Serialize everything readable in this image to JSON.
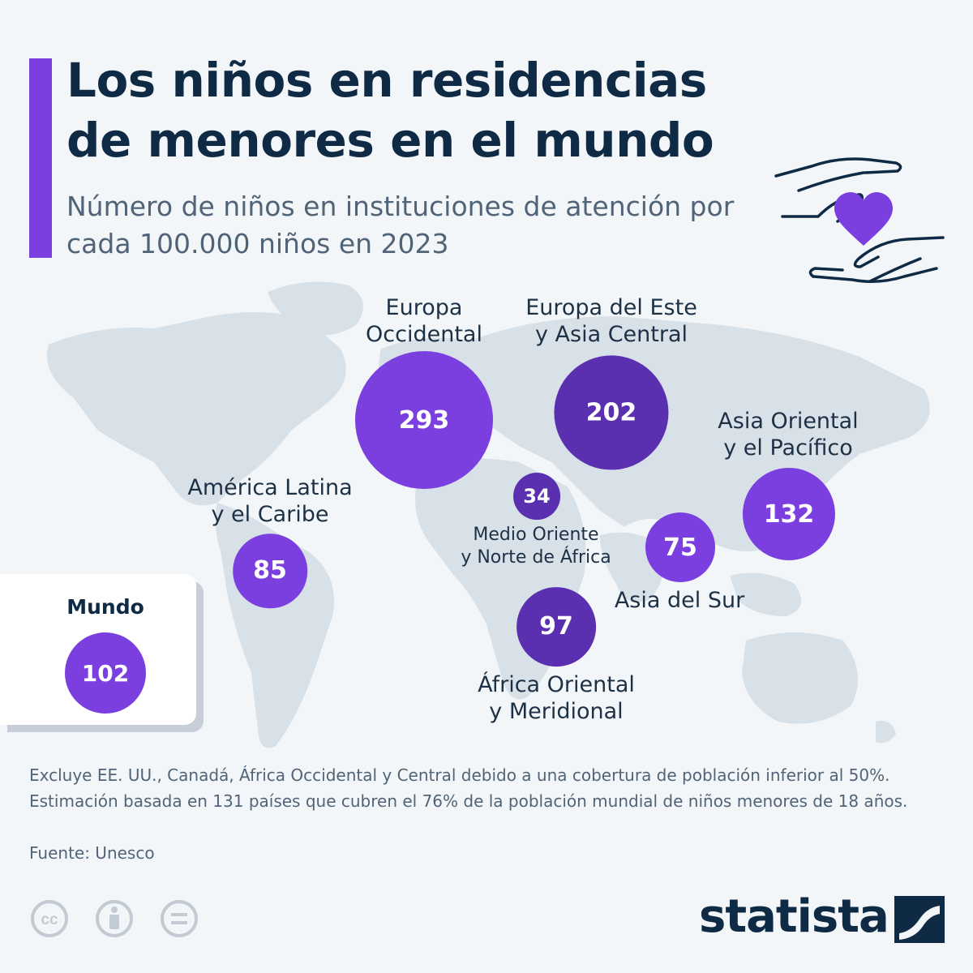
{
  "header": {
    "title": "Los niños en residencias de menores en el mundo",
    "subtitle": "Número de niños en instituciones de atención por cada 100.000 niños en 2023"
  },
  "colors": {
    "accent": "#7b3fe0",
    "bubble_light": "#7b3fe0",
    "bubble_dark": "#5a2fb0",
    "map_land": "#d8e1e7",
    "text_dark": "#0f2a44"
  },
  "icons": {
    "hero": "hands-heart-icon",
    "license": [
      "cc-icon",
      "attribution-icon",
      "no-derivatives-icon"
    ],
    "brand": "statista-logo-icon"
  },
  "regions": [
    {
      "id": "europa-occidental",
      "label_lines": [
        "Europa",
        "Occidental"
      ],
      "value": "293",
      "value_num": 293,
      "shade": "light"
    },
    {
      "id": "europa-este",
      "label_lines": [
        "Europa del Este",
        "y Asia Central"
      ],
      "value": "202",
      "value_num": 202,
      "shade": "dark"
    },
    {
      "id": "asia-oriental",
      "label_lines": [
        "Asia Oriental",
        "y el Pacífico"
      ],
      "value": "132",
      "value_num": 132,
      "shade": "light"
    },
    {
      "id": "america-latina",
      "label_lines": [
        "América Latina",
        "y el Caribe"
      ],
      "value": "85",
      "value_num": 85,
      "shade": "light"
    },
    {
      "id": "medio-oriente",
      "label_lines": [
        "Medio Oriente",
        "y Norte de África"
      ],
      "value": "34",
      "value_num": 34,
      "shade": "dark"
    },
    {
      "id": "asia-sur",
      "label_lines": [
        "Asia del Sur"
      ],
      "value": "75",
      "value_num": 75,
      "shade": "light"
    },
    {
      "id": "africa-oriental",
      "label_lines": [
        "África Oriental",
        "y Meridional"
      ],
      "value": "97",
      "value_num": 97,
      "shade": "dark"
    }
  ],
  "world": {
    "label": "Mundo",
    "value": "102"
  },
  "footer": {
    "note": "Excluye EE. UU., Canadá, África Occidental y Central debido a una cobertura de población inferior al 50%. Estimación basada en 131 países que cubren el 76% de la población mundial de niños menores de 18 años.",
    "source": "Fuente: Unesco",
    "brand": "statista"
  }
}
